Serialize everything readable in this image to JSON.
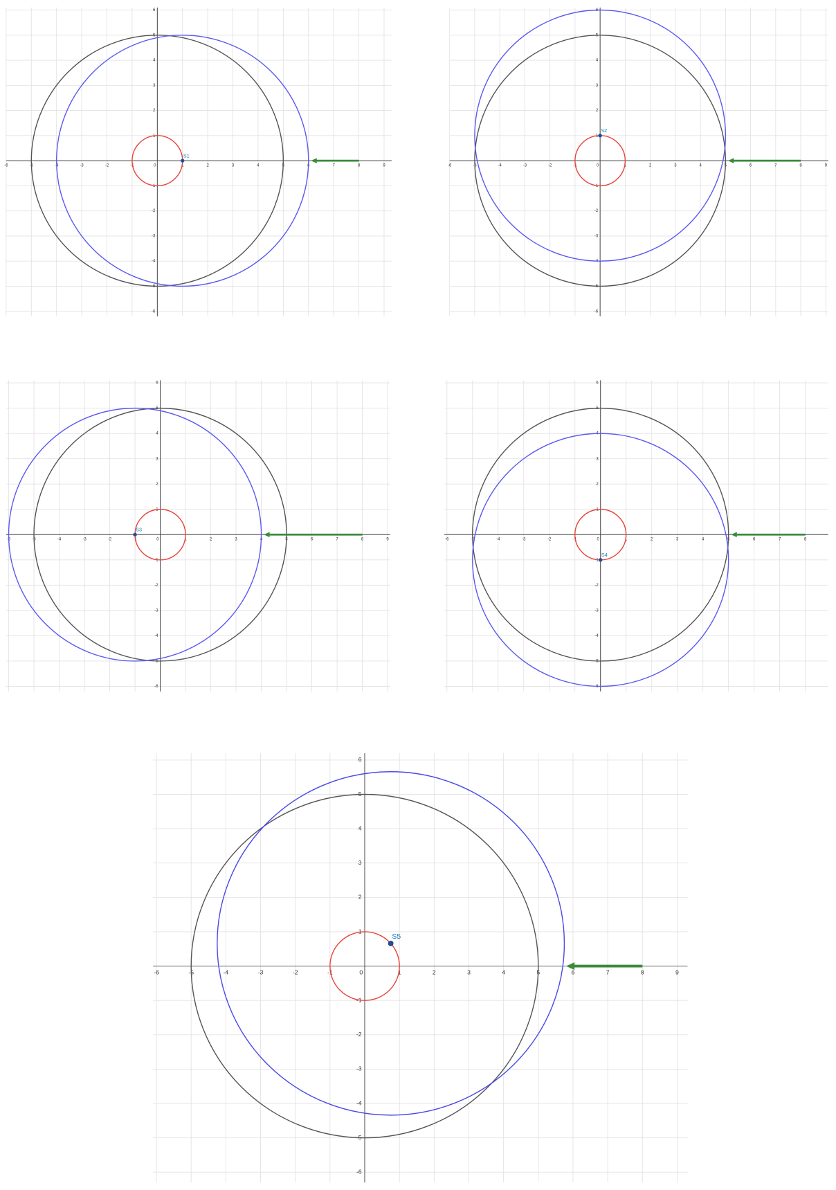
{
  "panels": [
    {
      "xlim": [
        -6.0,
        9.3
      ],
      "ylim": [
        -6.2,
        6.1
      ],
      "xticks": [
        -6,
        -5,
        -4,
        -3,
        -2,
        -1,
        0,
        1,
        2,
        3,
        4,
        5,
        6,
        7,
        8,
        9
      ],
      "yticks": [
        -6,
        -5,
        -4,
        -3,
        -2,
        -1,
        1,
        2,
        3,
        4,
        5,
        6
      ],
      "circles": [
        {
          "cx": 0,
          "cy": 0,
          "r": 5,
          "color": "#555555"
        },
        {
          "cx": 1,
          "cy": 0,
          "r": 5,
          "color": "#5a5af0"
        },
        {
          "cx": 0,
          "cy": 0,
          "r": 1,
          "color": "#e8453c"
        }
      ],
      "point": {
        "label": "S1",
        "x": 1,
        "y": 0
      },
      "arrow": {
        "from": 8,
        "to": 6.1,
        "color": "#3a8a3a"
      }
    },
    {
      "xlim": [
        -6.0,
        9.1
      ],
      "ylim": [
        -6.2,
        6.1
      ],
      "xticks": [
        -6,
        -5,
        -4,
        -3,
        -2,
        -1,
        0,
        1,
        2,
        3,
        4,
        5,
        6,
        7,
        8,
        9
      ],
      "yticks": [
        -6,
        -5,
        -4,
        -3,
        -2,
        -1,
        1,
        2,
        3,
        4,
        5,
        6
      ],
      "circles": [
        {
          "cx": 0,
          "cy": 0,
          "r": 5,
          "color": "#555555"
        },
        {
          "cx": 0,
          "cy": 1,
          "r": 5,
          "color": "#5a5af0"
        },
        {
          "cx": 0,
          "cy": 0,
          "r": 1,
          "color": "#e8453c"
        }
      ],
      "point": {
        "label": "S2",
        "x": 0,
        "y": 1
      },
      "arrow": {
        "from": 8,
        "to": 5.1,
        "color": "#3a8a3a"
      }
    },
    {
      "xlim": [
        -6.1,
        9.1
      ],
      "ylim": [
        -6.2,
        6.1
      ],
      "xticks": [
        -6,
        -5,
        -4,
        -3,
        -2,
        -1,
        0,
        1,
        2,
        3,
        4,
        5,
        6,
        7,
        8,
        9
      ],
      "yticks": [
        -6,
        -5,
        -4,
        -3,
        -2,
        -1,
        1,
        2,
        3,
        4,
        5,
        6
      ],
      "circles": [
        {
          "cx": 0,
          "cy": 0,
          "r": 5,
          "color": "#555555"
        },
        {
          "cx": -1,
          "cy": 0,
          "r": 5,
          "color": "#5a5af0"
        },
        {
          "cx": 0,
          "cy": 0,
          "r": 1,
          "color": "#e8453c"
        }
      ],
      "point": {
        "label": "S3",
        "x": -1,
        "y": 0
      },
      "arrow": {
        "from": 8,
        "to": 4.1,
        "color": "#3a8a3a"
      }
    },
    {
      "xlim": [
        -6.1,
        8.9
      ],
      "ylim": [
        -6.2,
        6.1
      ],
      "xticks": [
        -6,
        -5,
        -4,
        -3,
        -2,
        -1,
        0,
        1,
        2,
        3,
        4,
        5,
        6,
        7,
        8
      ],
      "yticks": [
        -6,
        -5,
        -4,
        -3,
        -2,
        -1,
        1,
        2,
        3,
        4,
        5,
        6
      ],
      "circles": [
        {
          "cx": 0,
          "cy": 0,
          "r": 5,
          "color": "#555555"
        },
        {
          "cx": 0,
          "cy": -1,
          "r": 5,
          "color": "#5a5af0"
        },
        {
          "cx": 0,
          "cy": 0,
          "r": 1,
          "color": "#e8453c"
        }
      ],
      "point": {
        "label": "S4",
        "x": 0,
        "y": -1
      },
      "arrow": {
        "from": 8,
        "to": 5.1,
        "color": "#3a8a3a"
      }
    },
    {
      "xlim": [
        -6.1,
        9.3
      ],
      "ylim": [
        -6.3,
        6.2
      ],
      "xticks": [
        -6,
        -5,
        -4,
        -3,
        -2,
        -1,
        0,
        1,
        2,
        3,
        4,
        5,
        6,
        7,
        8,
        9
      ],
      "yticks": [
        -6,
        -5,
        -4,
        -3,
        -2,
        -1,
        1,
        2,
        3,
        4,
        5,
        6
      ],
      "circles": [
        {
          "cx": 0,
          "cy": 0,
          "r": 5,
          "color": "#555555"
        },
        {
          "cx": 0.75,
          "cy": 0.66,
          "r": 5,
          "color": "#4a4ae8"
        },
        {
          "cx": 0,
          "cy": 0,
          "r": 1,
          "color": "#e8453c"
        }
      ],
      "point": {
        "label": "S5",
        "x": 0.75,
        "y": 0.66
      },
      "arrow": {
        "from": 8,
        "to": 5.8,
        "color": "#3a8a3a"
      }
    }
  ]
}
